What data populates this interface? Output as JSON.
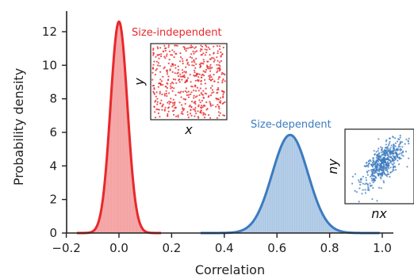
{
  "chart_data": {
    "type": "area",
    "xlabel": "Correlation",
    "ylabel": "Probability density",
    "xlim": [
      -0.2,
      1.0
    ],
    "ylim": [
      0,
      13
    ],
    "xticks": [
      -0.2,
      0.0,
      0.2,
      0.4,
      0.6,
      0.8,
      1.0
    ],
    "xtick_labels": [
      "−0.2",
      "0.0",
      "0.2",
      "0.4",
      "0.6",
      "0.8",
      "1.0"
    ],
    "yticks": [
      0,
      2,
      4,
      6,
      8,
      10,
      12
    ],
    "ytick_labels": [
      "0",
      "2",
      "4",
      "6",
      "8",
      "10",
      "12"
    ],
    "series": [
      {
        "name": "Size-independent",
        "color": "#e8282b",
        "fill": "#f4a3a3",
        "peak_x": 0.0,
        "peak_density": 12.6,
        "std": 0.032
      },
      {
        "name": "Size-dependent",
        "color": "#3b7bbf",
        "fill": "#a9c6e4",
        "peak_x": 0.65,
        "peak_density": 5.85,
        "std": 0.068
      }
    ],
    "annotations": [
      {
        "text": "Size-independent",
        "color": "#e8282b"
      },
      {
        "text": "Size-dependent",
        "color": "#3b7bbf"
      }
    ],
    "insets": [
      {
        "series": "Size-independent",
        "xlabel": "x",
        "ylabel": "y",
        "kind": "uncorrelated-scatter",
        "color": "#e8282b"
      },
      {
        "series": "Size-dependent",
        "xlabel": "nx",
        "ylabel": "ny",
        "kind": "correlated-scatter",
        "color": "#3b7bbf"
      }
    ],
    "grid": false,
    "legend": "none"
  }
}
